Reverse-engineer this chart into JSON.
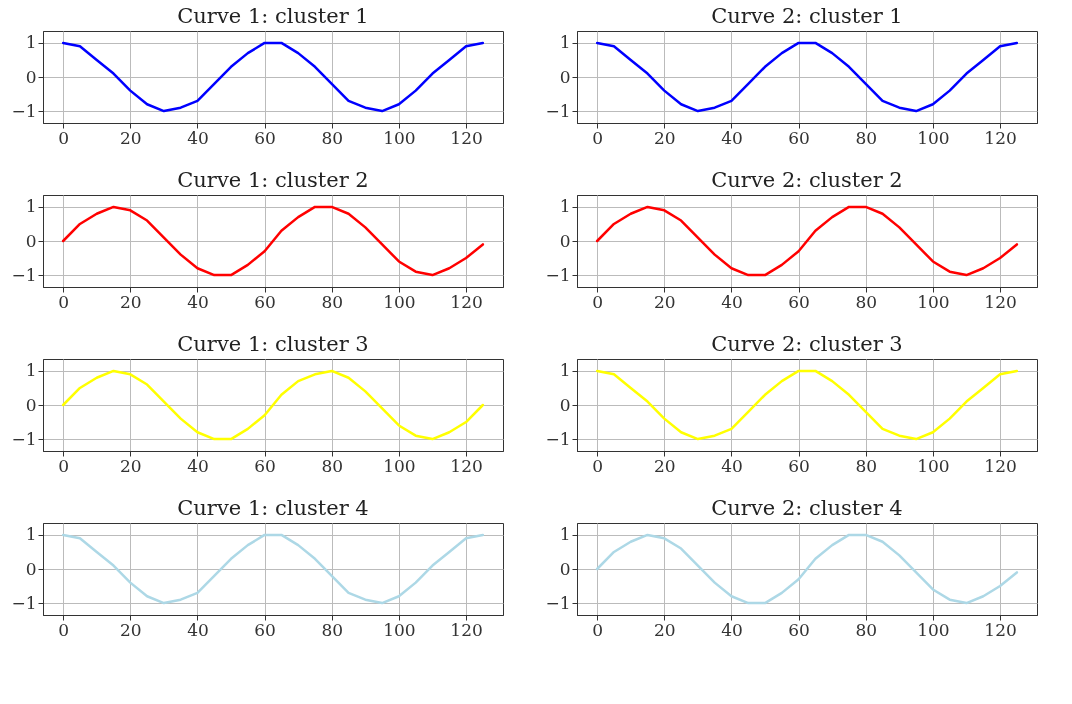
{
  "chart_data": [
    {
      "type": "line",
      "title": "Curve 1: cluster 1",
      "x": [
        0,
        5,
        10,
        15,
        20,
        25,
        30,
        35,
        40,
        45,
        50,
        55,
        60,
        65,
        70,
        75,
        80,
        85,
        90,
        95,
        100,
        105,
        110,
        115,
        120,
        125
      ],
      "xlim": [
        -6,
        131
      ],
      "ylim": [
        -1.35,
        1.35
      ],
      "xticks": [
        0,
        20,
        40,
        60,
        80,
        100,
        120
      ],
      "yticks": [
        -1,
        0,
        1
      ],
      "grid": true,
      "series": [
        {
          "color": "#0000ff",
          "values": [
            1.0,
            0.9,
            0.5,
            0.1,
            -0.4,
            -0.8,
            -1.0,
            -0.9,
            -0.7,
            -0.2,
            0.3,
            0.7,
            1.0,
            1.0,
            0.7,
            0.3,
            -0.2,
            -0.7,
            -0.9,
            -1.0,
            -0.8,
            -0.4,
            0.1,
            0.5,
            0.9,
            1.0
          ]
        }
      ]
    },
    {
      "type": "line",
      "title": "Curve 2: cluster 1",
      "x": [
        0,
        5,
        10,
        15,
        20,
        25,
        30,
        35,
        40,
        45,
        50,
        55,
        60,
        65,
        70,
        75,
        80,
        85,
        90,
        95,
        100,
        105,
        110,
        115,
        120,
        125
      ],
      "xlim": [
        -6,
        131
      ],
      "ylim": [
        -1.35,
        1.35
      ],
      "xticks": [
        0,
        20,
        40,
        60,
        80,
        100,
        120
      ],
      "yticks": [
        -1,
        0,
        1
      ],
      "grid": true,
      "series": [
        {
          "color": "#0000ff",
          "values": [
            1.0,
            0.9,
            0.5,
            0.1,
            -0.4,
            -0.8,
            -1.0,
            -0.9,
            -0.7,
            -0.2,
            0.3,
            0.7,
            1.0,
            1.0,
            0.7,
            0.3,
            -0.2,
            -0.7,
            -0.9,
            -1.0,
            -0.8,
            -0.4,
            0.1,
            0.5,
            0.9,
            1.0
          ]
        }
      ]
    },
    {
      "type": "line",
      "title": "Curve 1: cluster 2",
      "x": [
        0,
        5,
        10,
        15,
        20,
        25,
        30,
        35,
        40,
        45,
        50,
        55,
        60,
        65,
        70,
        75,
        80,
        85,
        90,
        95,
        100,
        105,
        110,
        115,
        120,
        125
      ],
      "xlim": [
        -6,
        131
      ],
      "ylim": [
        -1.35,
        1.35
      ],
      "xticks": [
        0,
        20,
        40,
        60,
        80,
        100,
        120
      ],
      "yticks": [
        -1,
        0,
        1
      ],
      "grid": true,
      "series": [
        {
          "color": "#ff0000",
          "values": [
            0.0,
            0.5,
            0.8,
            1.0,
            0.9,
            0.6,
            0.1,
            -0.4,
            -0.8,
            -1.0,
            -1.0,
            -0.7,
            -0.3,
            0.3,
            0.7,
            1.0,
            1.0,
            0.8,
            0.4,
            -0.1,
            -0.6,
            -0.9,
            -1.0,
            -0.8,
            -0.5,
            -0.1
          ]
        }
      ]
    },
    {
      "type": "line",
      "title": "Curve 2: cluster 2",
      "x": [
        0,
        5,
        10,
        15,
        20,
        25,
        30,
        35,
        40,
        45,
        50,
        55,
        60,
        65,
        70,
        75,
        80,
        85,
        90,
        95,
        100,
        105,
        110,
        115,
        120,
        125
      ],
      "xlim": [
        -6,
        131
      ],
      "ylim": [
        -1.35,
        1.35
      ],
      "xticks": [
        0,
        20,
        40,
        60,
        80,
        100,
        120
      ],
      "yticks": [
        -1,
        0,
        1
      ],
      "grid": true,
      "series": [
        {
          "color": "#ff0000",
          "values": [
            0.0,
            0.5,
            0.8,
            1.0,
            0.9,
            0.6,
            0.1,
            -0.4,
            -0.8,
            -1.0,
            -1.0,
            -0.7,
            -0.3,
            0.3,
            0.7,
            1.0,
            1.0,
            0.8,
            0.4,
            -0.1,
            -0.6,
            -0.9,
            -1.0,
            -0.8,
            -0.5,
            -0.1
          ]
        }
      ]
    },
    {
      "type": "line",
      "title": "Curve 1: cluster 3",
      "x": [
        0,
        5,
        10,
        15,
        20,
        25,
        30,
        35,
        40,
        45,
        50,
        55,
        60,
        65,
        70,
        75,
        80,
        85,
        90,
        95,
        100,
        105,
        110,
        115,
        120,
        125
      ],
      "xlim": [
        -6,
        131
      ],
      "ylim": [
        -1.35,
        1.35
      ],
      "xticks": [
        0,
        20,
        40,
        60,
        80,
        100,
        120
      ],
      "yticks": [
        -1,
        0,
        1
      ],
      "grid": true,
      "series": [
        {
          "color": "#ffff00",
          "values": [
            0.0,
            0.5,
            0.8,
            1.0,
            0.9,
            0.6,
            0.1,
            -0.4,
            -0.8,
            -1.0,
            -1.0,
            -0.7,
            -0.3,
            0.3,
            0.7,
            0.9,
            1.0,
            0.8,
            0.4,
            -0.1,
            -0.6,
            -0.9,
            -1.0,
            -0.8,
            -0.5,
            0.0
          ]
        }
      ]
    },
    {
      "type": "line",
      "title": "Curve 2: cluster 3",
      "x": [
        0,
        5,
        10,
        15,
        20,
        25,
        30,
        35,
        40,
        45,
        50,
        55,
        60,
        65,
        70,
        75,
        80,
        85,
        90,
        95,
        100,
        105,
        110,
        115,
        120,
        125
      ],
      "xlim": [
        -6,
        131
      ],
      "ylim": [
        -1.35,
        1.35
      ],
      "xticks": [
        0,
        20,
        40,
        60,
        80,
        100,
        120
      ],
      "yticks": [
        -1,
        0,
        1
      ],
      "grid": true,
      "series": [
        {
          "color": "#ffff00",
          "values": [
            1.0,
            0.9,
            0.5,
            0.1,
            -0.4,
            -0.8,
            -1.0,
            -0.9,
            -0.7,
            -0.2,
            0.3,
            0.7,
            1.0,
            1.0,
            0.7,
            0.3,
            -0.2,
            -0.7,
            -0.9,
            -1.0,
            -0.8,
            -0.4,
            0.1,
            0.5,
            0.9,
            1.0
          ]
        }
      ]
    },
    {
      "type": "line",
      "title": "Curve 1: cluster 4",
      "x": [
        0,
        5,
        10,
        15,
        20,
        25,
        30,
        35,
        40,
        45,
        50,
        55,
        60,
        65,
        70,
        75,
        80,
        85,
        90,
        95,
        100,
        105,
        110,
        115,
        120,
        125
      ],
      "xlim": [
        -6,
        131
      ],
      "ylim": [
        -1.35,
        1.35
      ],
      "xticks": [
        0,
        20,
        40,
        60,
        80,
        100,
        120
      ],
      "yticks": [
        -1,
        0,
        1
      ],
      "grid": true,
      "series": [
        {
          "color": "#add8e6",
          "values": [
            1.0,
            0.9,
            0.5,
            0.1,
            -0.4,
            -0.8,
            -1.0,
            -0.9,
            -0.7,
            -0.2,
            0.3,
            0.7,
            1.0,
            1.0,
            0.7,
            0.3,
            -0.2,
            -0.7,
            -0.9,
            -1.0,
            -0.8,
            -0.4,
            0.1,
            0.5,
            0.9,
            1.0
          ]
        }
      ]
    },
    {
      "type": "line",
      "title": "Curve 2: cluster 4",
      "x": [
        0,
        5,
        10,
        15,
        20,
        25,
        30,
        35,
        40,
        45,
        50,
        55,
        60,
        65,
        70,
        75,
        80,
        85,
        90,
        95,
        100,
        105,
        110,
        115,
        120,
        125
      ],
      "xlim": [
        -6,
        131
      ],
      "ylim": [
        -1.35,
        1.35
      ],
      "xticks": [
        0,
        20,
        40,
        60,
        80,
        100,
        120
      ],
      "yticks": [
        -1,
        0,
        1
      ],
      "grid": true,
      "series": [
        {
          "color": "#add8e6",
          "values": [
            0.0,
            0.5,
            0.8,
            1.0,
            0.9,
            0.6,
            0.1,
            -0.4,
            -0.8,
            -1.0,
            -1.0,
            -0.7,
            -0.3,
            0.3,
            0.7,
            1.0,
            1.0,
            0.8,
            0.4,
            -0.1,
            -0.6,
            -0.9,
            -1.0,
            -0.8,
            -0.5,
            -0.1
          ]
        }
      ]
    }
  ]
}
